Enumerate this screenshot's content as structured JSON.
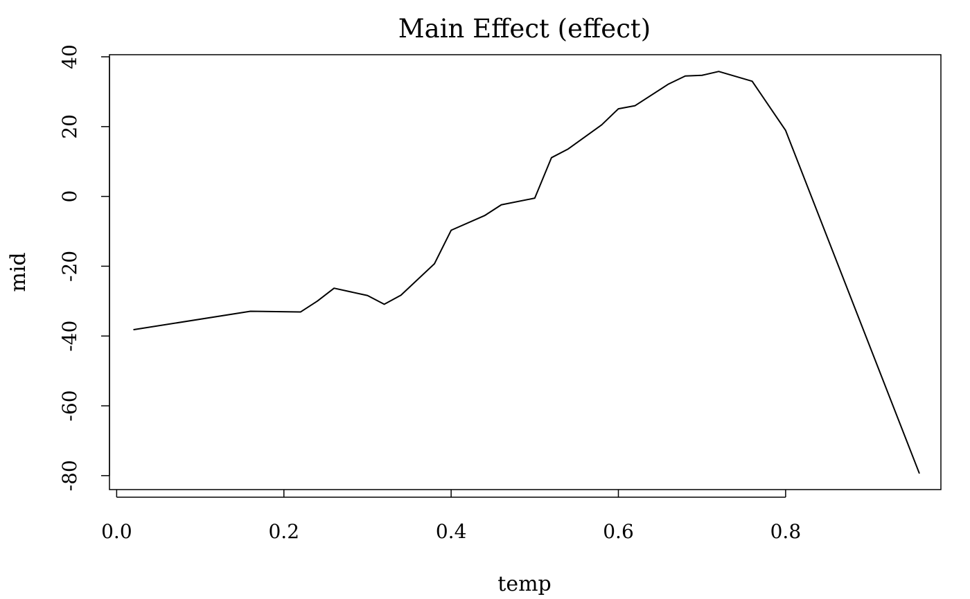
{
  "chart_data": {
    "type": "line",
    "title": "Main Effect (effect)",
    "xlabel": "temp",
    "ylabel": "mid",
    "xlim": [
      -0.0086,
      0.9857
    ],
    "ylim": [
      -84,
      40.6
    ],
    "x_ticks": [
      0.0,
      0.2,
      0.4,
      0.6,
      0.8
    ],
    "x_tick_labels": [
      "0.0",
      "0.2",
      "0.4",
      "0.6",
      "0.8"
    ],
    "y_ticks": [
      -80,
      -60,
      -40,
      -20,
      0,
      20,
      40
    ],
    "y_tick_labels": [
      "-80",
      "-60",
      "-40",
      "-20",
      "0",
      "20",
      "40"
    ],
    "grid": false,
    "series": [
      {
        "x": [
          0.02,
          0.16,
          0.22,
          0.24,
          0.26,
          0.3,
          0.32,
          0.34,
          0.38,
          0.4,
          0.44,
          0.46,
          0.5,
          0.52,
          0.54,
          0.58,
          0.6,
          0.62,
          0.66,
          0.68,
          0.7,
          0.72,
          0.76,
          0.8,
          0.96
        ],
        "y": [
          -38.2,
          -32.9,
          -33.1,
          -30.0,
          -26.3,
          -28.4,
          -30.9,
          -28.3,
          -19.3,
          -9.7,
          -5.5,
          -2.4,
          -0.5,
          11.1,
          13.6,
          20.5,
          25.1,
          26.0,
          32.2,
          34.5,
          34.7,
          35.8,
          33.0,
          18.9,
          -79.4
        ]
      }
    ]
  }
}
